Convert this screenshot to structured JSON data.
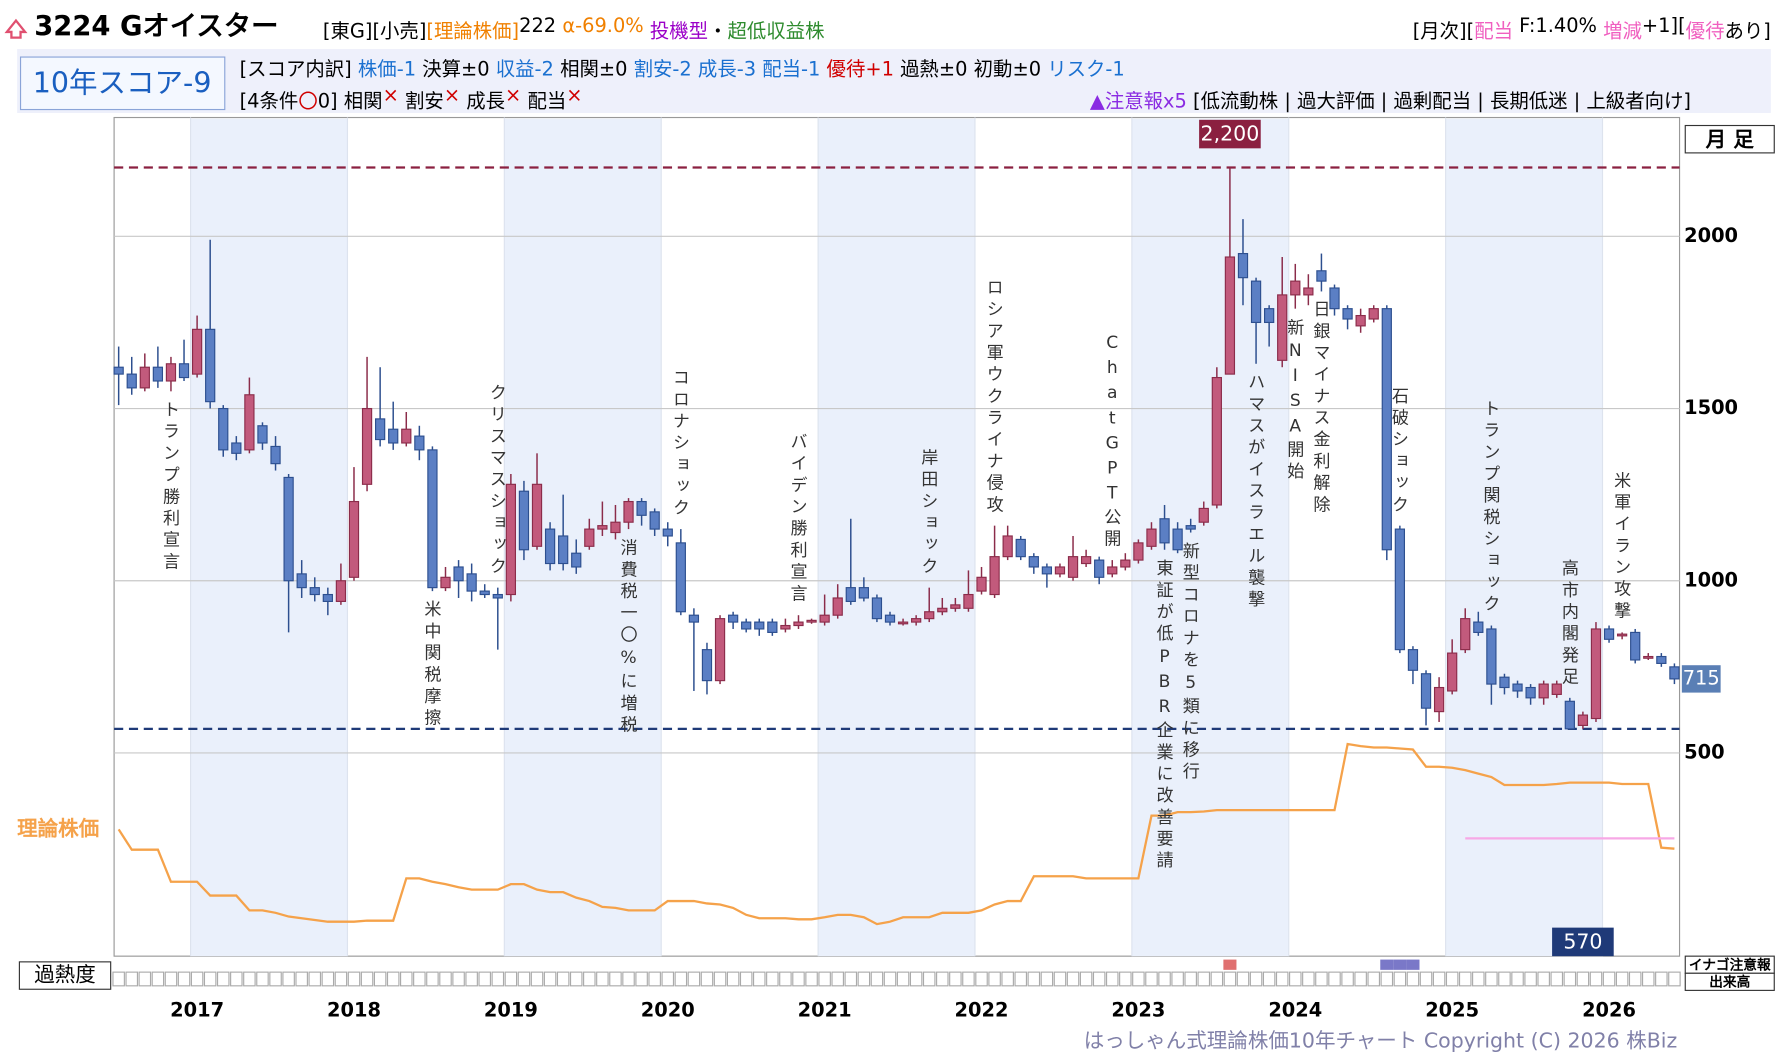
{
  "header": {
    "title": "3224 Gオイスター",
    "line1_left": [
      {
        "text": "[東G][小売]",
        "color": "#000000"
      },
      {
        "text": "[理論株価]",
        "color": "#f08000"
      },
      {
        "text": "222 ",
        "color": "#000000"
      },
      {
        "text": "α-69.0% ",
        "color": "#f08000"
      },
      {
        "text": "投機型",
        "color": "#9b00c8"
      },
      {
        "text": "・",
        "color": "#000000"
      },
      {
        "text": "超低収益株",
        "color": "#2e8b2e"
      }
    ],
    "line1_right": [
      {
        "text": "[月次][",
        "color": "#000000"
      },
      {
        "text": "配当",
        "color": "#f060c0"
      },
      {
        "text": " F:1.40% ",
        "color": "#000000"
      },
      {
        "text": "増減",
        "color": "#f060c0"
      },
      {
        "text": "+1][",
        "color": "#000000"
      },
      {
        "text": "優待",
        "color": "#f060c0"
      },
      {
        "text": "あり]",
        "color": "#000000"
      }
    ],
    "score_box": "10年スコア-9",
    "line2": [
      {
        "text": "[スコア内訳] ",
        "color": "#000000"
      },
      {
        "text": "株価-1 ",
        "color": "#1a70d0"
      },
      {
        "text": "決算±0 ",
        "color": "#000000"
      },
      {
        "text": "収益-2 ",
        "color": "#1a70d0"
      },
      {
        "text": "相関±0 ",
        "color": "#000000"
      },
      {
        "text": "割安-2 ",
        "color": "#1a70d0"
      },
      {
        "text": "成長-3 ",
        "color": "#1a70d0"
      },
      {
        "text": "配当-1 ",
        "color": "#1a70d0"
      },
      {
        "text": "優待+1 ",
        "color": "#d00000"
      },
      {
        "text": "過熱±0 ",
        "color": "#000000"
      },
      {
        "text": "初動±0 ",
        "color": "#000000"
      },
      {
        "text": "リスク-1",
        "color": "#1a70d0"
      }
    ],
    "line3_left": [
      {
        "text": "[4条件",
        "color": "#000000"
      },
      {
        "text": "〇",
        "color": "#d00000"
      },
      {
        "text": "0] 相関",
        "color": "#000000"
      },
      {
        "text": "×",
        "color": "#d00000"
      },
      {
        "text": " 割安",
        "color": "#000000"
      },
      {
        "text": "×",
        "color": "#d00000"
      },
      {
        "text": " 成長",
        "color": "#000000"
      },
      {
        "text": "×",
        "color": "#d00000"
      },
      {
        "text": " 配当",
        "color": "#000000"
      },
      {
        "text": "×",
        "color": "#d00000"
      }
    ],
    "line3_right": [
      {
        "text": "▲注意報x5 ",
        "color": "#8a2be2"
      },
      {
        "text": "[低流動株 | 過大評価 | 過剰配当 | 長期低迷 | 上級者向け]",
        "color": "#000000"
      }
    ]
  },
  "chart_data": {
    "type": "candlestick",
    "period_label": "月 足",
    "x": [
      "2016-07",
      "2016-08",
      "2016-09",
      "2016-10",
      "2016-11",
      "2016-12",
      "2017-01",
      "2017-02",
      "2017-03",
      "2017-04",
      "2017-05",
      "2017-06",
      "2017-07",
      "2017-08",
      "2017-09",
      "2017-10",
      "2017-11",
      "2017-12",
      "2018-01",
      "2018-02",
      "2018-03",
      "2018-04",
      "2018-05",
      "2018-06",
      "2018-07",
      "2018-08",
      "2018-09",
      "2018-10",
      "2018-11",
      "2018-12",
      "2019-01",
      "2019-02",
      "2019-03",
      "2019-04",
      "2019-05",
      "2019-06",
      "2019-07",
      "2019-08",
      "2019-09",
      "2019-10",
      "2019-11",
      "2019-12",
      "2020-01",
      "2020-02",
      "2020-03",
      "2020-04",
      "2020-05",
      "2020-06",
      "2020-07",
      "2020-08",
      "2020-09",
      "2020-10",
      "2020-11",
      "2020-12",
      "2021-01",
      "2021-02",
      "2021-03",
      "2021-04",
      "2021-05",
      "2021-06",
      "2021-07",
      "2021-08",
      "2021-09",
      "2021-10",
      "2021-11",
      "2021-12",
      "2022-01",
      "2022-02",
      "2022-03",
      "2022-04",
      "2022-05",
      "2022-06",
      "2022-07",
      "2022-08",
      "2022-09",
      "2022-10",
      "2022-11",
      "2022-12",
      "2023-01",
      "2023-02",
      "2023-03",
      "2023-04",
      "2023-05",
      "2023-06",
      "2023-07",
      "2023-08",
      "2023-09",
      "2023-10",
      "2023-11",
      "2023-12",
      "2024-01",
      "2024-02",
      "2024-03",
      "2024-04",
      "2024-05",
      "2024-06",
      "2024-07",
      "2024-08",
      "2024-09",
      "2024-10",
      "2024-11",
      "2024-12",
      "2025-01",
      "2025-02",
      "2025-03",
      "2025-04",
      "2025-05",
      "2025-06",
      "2025-07",
      "2025-08",
      "2025-09",
      "2025-10",
      "2025-11",
      "2025-12",
      "2026-01",
      "2026-02",
      "2026-03",
      "2026-04",
      "2026-05",
      "2026-06"
    ],
    "open": [
      1620,
      1600,
      1560,
      1620,
      1580,
      1630,
      1600,
      1730,
      1500,
      1400,
      1380,
      1450,
      1390,
      1300,
      1020,
      980,
      960,
      940,
      1010,
      1280,
      1470,
      1440,
      1400,
      1420,
      1380,
      980,
      1040,
      1020,
      970,
      960,
      960,
      1260,
      1100,
      1150,
      1130,
      1080,
      1100,
      1150,
      1140,
      1170,
      1230,
      1200,
      1150,
      1110,
      900,
      800,
      710,
      900,
      880,
      880,
      880,
      860,
      870,
      880,
      880,
      900,
      980,
      980,
      950,
      900,
      880,
      880,
      890,
      910,
      920,
      920,
      970,
      960,
      1070,
      1120,
      1070,
      1040,
      1020,
      1010,
      1050,
      1060,
      1020,
      1040,
      1060,
      1100,
      1180,
      1150,
      1160,
      1170,
      1220,
      1600,
      1950,
      1870,
      1790,
      1640,
      1830,
      1830,
      1900,
      1850,
      1790,
      1740,
      1760,
      1790,
      1150,
      800,
      730,
      620,
      680,
      800,
      880,
      860,
      720,
      700,
      690,
      660,
      670,
      650,
      580,
      600,
      860,
      840,
      850,
      780,
      780,
      750
    ],
    "high": [
      1680,
      1650,
      1660,
      1680,
      1650,
      1700,
      1770,
      1990,
      1510,
      1420,
      1590,
      1460,
      1420,
      1310,
      1060,
      1010,
      980,
      1050,
      1330,
      1650,
      1620,
      1520,
      1490,
      1450,
      1390,
      1040,
      1060,
      1050,
      990,
      980,
      1310,
      1290,
      1370,
      1170,
      1250,
      1120,
      1180,
      1230,
      1220,
      1240,
      1240,
      1210,
      1170,
      1150,
      920,
      820,
      900,
      910,
      890,
      890,
      890,
      890,
      900,
      890,
      960,
      990,
      1180,
      1010,
      960,
      910,
      890,
      900,
      980,
      950,
      950,
      1030,
      1040,
      1160,
      1160,
      1130,
      1080,
      1050,
      1050,
      1130,
      1090,
      1070,
      1060,
      1080,
      1120,
      1170,
      1220,
      1170,
      1180,
      1230,
      1620,
      2200,
      2050,
      1880,
      1800,
      1940,
      1920,
      1890,
      1950,
      1860,
      1800,
      1790,
      1800,
      1800,
      1160,
      810,
      740,
      720,
      830,
      920,
      910,
      870,
      730,
      710,
      700,
      710,
      710,
      660,
      620,
      880,
      870,
      850,
      860,
      790,
      790,
      760
    ],
    "low": [
      1510,
      1540,
      1550,
      1560,
      1550,
      1580,
      1590,
      1500,
      1360,
      1350,
      1370,
      1380,
      1320,
      850,
      950,
      940,
      900,
      930,
      1000,
      1260,
      1390,
      1380,
      1390,
      1350,
      970,
      970,
      950,
      940,
      950,
      800,
      940,
      1060,
      1090,
      1030,
      1030,
      1020,
      1090,
      1130,
      1120,
      1150,
      1160,
      1130,
      1100,
      900,
      680,
      670,
      700,
      860,
      850,
      840,
      840,
      850,
      860,
      875,
      870,
      890,
      930,
      940,
      880,
      870,
      870,
      870,
      880,
      900,
      910,
      910,
      960,
      950,
      1060,
      1060,
      1020,
      980,
      1010,
      1000,
      1040,
      990,
      1010,
      1030,
      1050,
      1090,
      1090,
      1080,
      1140,
      1160,
      1210,
      1600,
      1800,
      1630,
      1680,
      1620,
      1790,
      1800,
      1840,
      1770,
      1730,
      1720,
      1750,
      1060,
      790,
      700,
      580,
      590,
      670,
      790,
      840,
      640,
      670,
      660,
      640,
      640,
      660,
      570,
      570,
      590,
      820,
      830,
      760,
      770,
      750,
      700
    ],
    "close": [
      1600,
      1560,
      1620,
      1580,
      1630,
      1590,
      1730,
      1520,
      1380,
      1370,
      1540,
      1400,
      1340,
      1000,
      980,
      960,
      940,
      1000,
      1230,
      1500,
      1410,
      1400,
      1440,
      1380,
      980,
      1010,
      1000,
      970,
      960,
      950,
      1280,
      1090,
      1280,
      1050,
      1050,
      1040,
      1150,
      1160,
      1170,
      1230,
      1190,
      1150,
      1130,
      910,
      880,
      710,
      890,
      880,
      860,
      860,
      850,
      870,
      880,
      885,
      900,
      950,
      940,
      950,
      890,
      880,
      880,
      890,
      910,
      920,
      930,
      960,
      1010,
      1070,
      1130,
      1070,
      1040,
      1020,
      1040,
      1070,
      1070,
      1010,
      1040,
      1060,
      1110,
      1150,
      1110,
      1090,
      1150,
      1210,
      1590,
      1940,
      1880,
      1750,
      1750,
      1830,
      1870,
      1850,
      1870,
      1790,
      1760,
      1770,
      1790,
      1090,
      800,
      740,
      630,
      690,
      790,
      890,
      850,
      700,
      690,
      680,
      660,
      700,
      700,
      570,
      610,
      860,
      830,
      845,
      770,
      780,
      760,
      715
    ],
    "up_color": "#c25a7c",
    "up_edge": "#8b2c4a",
    "down_color": "#5b7fc4",
    "down_edge": "#2d4f8f",
    "series": [
      {
        "name": "理論株価",
        "color": "#f5a24a",
        "values": [
          278,
          219,
          219,
          219,
          126,
          126,
          126,
          86,
          86,
          86,
          43,
          43,
          36,
          25,
          20,
          15,
          10,
          10,
          10,
          13,
          13,
          13,
          136,
          136,
          126,
          119,
          110,
          103,
          103,
          103,
          119,
          119,
          103,
          96,
          96,
          80,
          70,
          53,
          50,
          43,
          43,
          43,
          70,
          70,
          70,
          63,
          60,
          50,
          30,
          20,
          20,
          20,
          17,
          17,
          23,
          30,
          30,
          23,
          3,
          10,
          23,
          23,
          23,
          36,
          36,
          36,
          43,
          60,
          70,
          70,
          142,
          142,
          142,
          142,
          136,
          136,
          136,
          136,
          136,
          318,
          318,
          328,
          328,
          330,
          334,
          334,
          334,
          334,
          334,
          334,
          334,
          334,
          334,
          334,
          526,
          520,
          516,
          516,
          513,
          510,
          460,
          460,
          457,
          450,
          440,
          430,
          407,
          407,
          407,
          407,
          410,
          414,
          414,
          414,
          414,
          410,
          410,
          410,
          225,
          222
        ]
      }
    ],
    "target_line": {
      "value": 252,
      "from": "2025-02",
      "to": "2026-06",
      "color": "#f7a8e6"
    },
    "hlines": [
      {
        "value": 2200,
        "label": "2,200",
        "color": "#8b2040"
      },
      {
        "value": 570,
        "label": "570",
        "color": "#1f3a78"
      }
    ],
    "ylim": [
      -90,
      2345
    ],
    "yticks": [
      500,
      1000,
      1500,
      2000
    ],
    "xticks": [
      2017,
      2018,
      2019,
      2020,
      2021,
      2022,
      2023,
      2024,
      2025,
      2026
    ],
    "grid": true,
    "events": [
      {
        "x": "2016-11",
        "label": "トランプ勝利宣言",
        "side": "below"
      },
      {
        "x": "2018-07",
        "label": "米中関税摩擦",
        "side": "below"
      },
      {
        "x": "2018-12",
        "label": "クリスマスショック",
        "side": "above"
      },
      {
        "x": "2019-10",
        "label": "消費税一〇%に増税",
        "side": "below"
      },
      {
        "x": "2020-02",
        "label": "コロナショック",
        "side": "above"
      },
      {
        "x": "2020-11",
        "label": "バイデン勝利宣言",
        "side": "above"
      },
      {
        "x": "2021-09",
        "label": "岸田ショック",
        "side": "above"
      },
      {
        "x": "2022-02",
        "label": "ロシア軍ウクライナ侵攻",
        "side": "above"
      },
      {
        "x": "2022-11",
        "label": "ChatGPT公開",
        "side": "above"
      },
      {
        "x": "2023-03",
        "label": "東証が低PBR企業に改善要請",
        "side": "below"
      },
      {
        "x": "2023-05",
        "label": "新型コロナを5類に移行",
        "side": "below"
      },
      {
        "x": "2023-10",
        "label": "ハマスがイスラエル襲撃",
        "side": "below"
      },
      {
        "x": "2024-01",
        "label": "新NISA開始",
        "side": "below"
      },
      {
        "x": "2024-03",
        "label": "日銀マイナス金利解除",
        "side": "below"
      },
      {
        "x": "2024-09",
        "label": "石破ショック",
        "side": "above"
      },
      {
        "x": "2025-04",
        "label": "トランプ関税ショック",
        "side": "above"
      },
      {
        "x": "2025-10",
        "label": "高市内閣発足",
        "side": "above"
      },
      {
        "x": "2026-02",
        "label": "米軍イラン攻撃",
        "side": "above"
      }
    ],
    "overheat_label": "過熱度",
    "overheat": [
      {
        "x": "2023-08",
        "color": "#e07070"
      },
      {
        "x": "2024-08",
        "color": "#7a78c8"
      },
      {
        "x": "2024-09",
        "color": "#7a78c8"
      },
      {
        "x": "2024-10",
        "color": "#7a78c8"
      }
    ],
    "side_labels": [
      "イナゴ注意報",
      "出来高"
    ],
    "copyright": "はっしゃん式理論株価10年チャート Copyright (C) 2026 株Biz"
  }
}
